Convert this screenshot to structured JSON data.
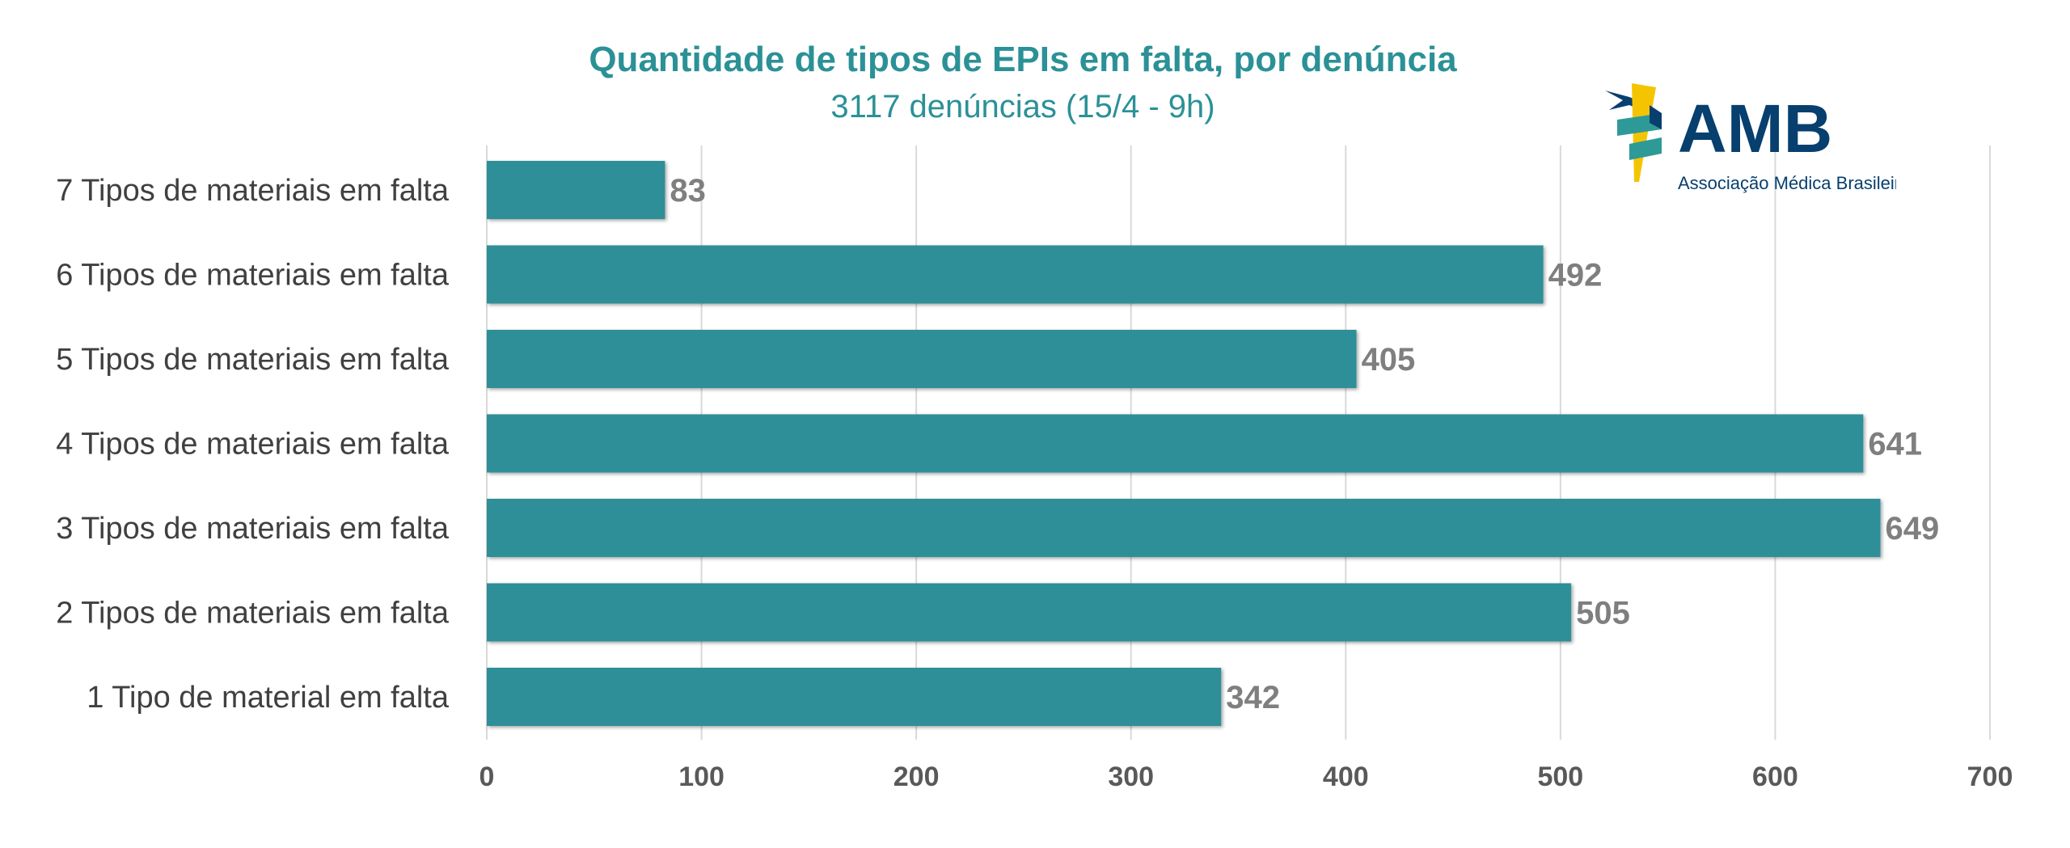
{
  "chart_data": {
    "type": "bar",
    "orientation": "horizontal",
    "title": "Quantidade de tipos de EPIs em falta, por denúncia",
    "subtitle": "3117 denúncias (15/4 - 9h)",
    "categories": [
      "7 Tipos de materiais em falta",
      "6 Tipos de materiais em falta",
      "5 Tipos de materiais em falta",
      "4 Tipos de materiais em falta",
      "3 Tipos de materiais em falta",
      "2 Tipos de materiais em falta",
      "1 Tipo de material em falta"
    ],
    "values": [
      83,
      492,
      405,
      641,
      649,
      505,
      342
    ],
    "xlim": [
      0,
      700
    ],
    "xticks": [
      0,
      100,
      200,
      300,
      400,
      500,
      600,
      700
    ],
    "grid": "vertical",
    "xlabel": "",
    "ylabel": "",
    "colors": {
      "bar": "#2e8f98",
      "title": "#2b9197",
      "value_label": "#7f7f7f",
      "tick": "#595959",
      "grid": "#d9d9d9"
    }
  },
  "logo": {
    "text": "AMB",
    "subtext": "Associação Médica Brasileira",
    "colors": {
      "navy": "#073f6e",
      "yellow": "#f5c400",
      "teal": "#2e9a98"
    }
  }
}
